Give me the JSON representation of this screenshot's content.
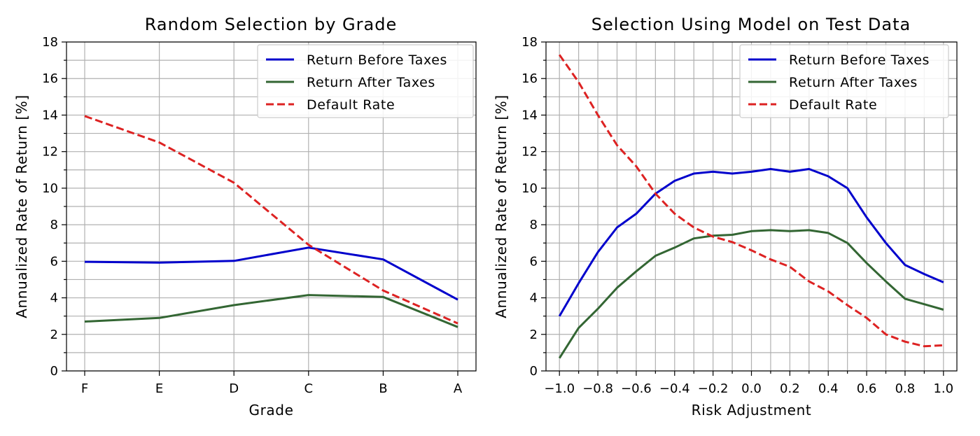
{
  "chart_data": [
    {
      "type": "line",
      "title": "Random Selection by Grade",
      "xlabel": "Grade",
      "ylabel": "Annualized Rate of Return [%]",
      "categories": [
        "F",
        "E",
        "D",
        "C",
        "B",
        "A"
      ],
      "x_tick_labels": [
        "F",
        "E",
        "D",
        "C",
        "B",
        "A"
      ],
      "ylim": [
        0,
        18
      ],
      "y_ticks": [
        0,
        2,
        4,
        6,
        8,
        10,
        12,
        14,
        16,
        18
      ],
      "y_tick_labels": [
        "0",
        "2",
        "4",
        "6",
        "8",
        "10",
        "12",
        "14",
        "16",
        "18"
      ],
      "grid": true,
      "legend_position": "top-right",
      "series": [
        {
          "name": "Return Before Taxes",
          "color": "#0000cc",
          "dash": "solid",
          "values": [
            5.97,
            5.93,
            6.02,
            6.75,
            6.1,
            3.9
          ]
        },
        {
          "name": "Return After Taxes",
          "color": "#336633",
          "dash": "solid",
          "values": [
            2.7,
            2.9,
            3.6,
            4.15,
            4.05,
            2.4
          ]
        },
        {
          "name": "Default Rate",
          "color": "#dd2222",
          "dash": "dashed",
          "values": [
            13.95,
            12.5,
            10.3,
            6.9,
            4.4,
            2.6
          ]
        }
      ]
    },
    {
      "type": "line",
      "title": "Selection Using Model on Test Data",
      "xlabel": "Risk Adjustment",
      "ylabel": "Annualized Rate of Return [%]",
      "x": [
        -1.0,
        -0.9,
        -0.8,
        -0.7,
        -0.6,
        -0.5,
        -0.4,
        -0.3,
        -0.2,
        -0.1,
        0.0,
        0.1,
        0.2,
        0.3,
        0.4,
        0.5,
        0.6,
        0.7,
        0.8,
        0.9,
        1.0
      ],
      "xlim": [
        -1.07,
        1.07
      ],
      "x_ticks": [
        -1.0,
        -0.8,
        -0.6,
        -0.4,
        -0.2,
        0.0,
        0.2,
        0.4,
        0.6,
        0.8,
        1.0
      ],
      "x_tick_labels": [
        "−1.0",
        "−0.8",
        "−0.6",
        "−0.4",
        "−0.2",
        "0.0",
        "0.2",
        "0.4",
        "0.6",
        "0.8",
        "1.0"
      ],
      "ylim": [
        0,
        18
      ],
      "y_ticks": [
        0,
        2,
        4,
        6,
        8,
        10,
        12,
        14,
        16,
        18
      ],
      "y_tick_labels": [
        "0",
        "2",
        "4",
        "6",
        "8",
        "10",
        "12",
        "14",
        "16",
        "18"
      ],
      "grid": true,
      "legend_position": "top-right",
      "series": [
        {
          "name": "Return Before Taxes",
          "color": "#0000cc",
          "dash": "solid",
          "values": [
            3.0,
            4.8,
            6.5,
            7.85,
            8.6,
            9.7,
            10.4,
            10.8,
            10.9,
            10.8,
            10.9,
            11.05,
            10.9,
            11.05,
            10.65,
            10.0,
            8.4,
            7.0,
            5.8,
            5.3,
            4.85
          ]
        },
        {
          "name": "Return After Taxes",
          "color": "#336633",
          "dash": "solid",
          "values": [
            0.7,
            2.35,
            3.4,
            4.55,
            5.45,
            6.3,
            6.75,
            7.25,
            7.4,
            7.45,
            7.65,
            7.7,
            7.65,
            7.7,
            7.55,
            7.0,
            5.9,
            4.9,
            3.95,
            3.65,
            3.35
          ]
        },
        {
          "name": "Default Rate",
          "color": "#dd2222",
          "dash": "dashed",
          "values": [
            17.3,
            15.8,
            14.0,
            12.35,
            11.2,
            9.7,
            8.6,
            7.85,
            7.35,
            7.05,
            6.6,
            6.1,
            5.7,
            4.9,
            4.35,
            3.6,
            2.9,
            2.0,
            1.6,
            1.35,
            1.4
          ]
        }
      ]
    }
  ]
}
